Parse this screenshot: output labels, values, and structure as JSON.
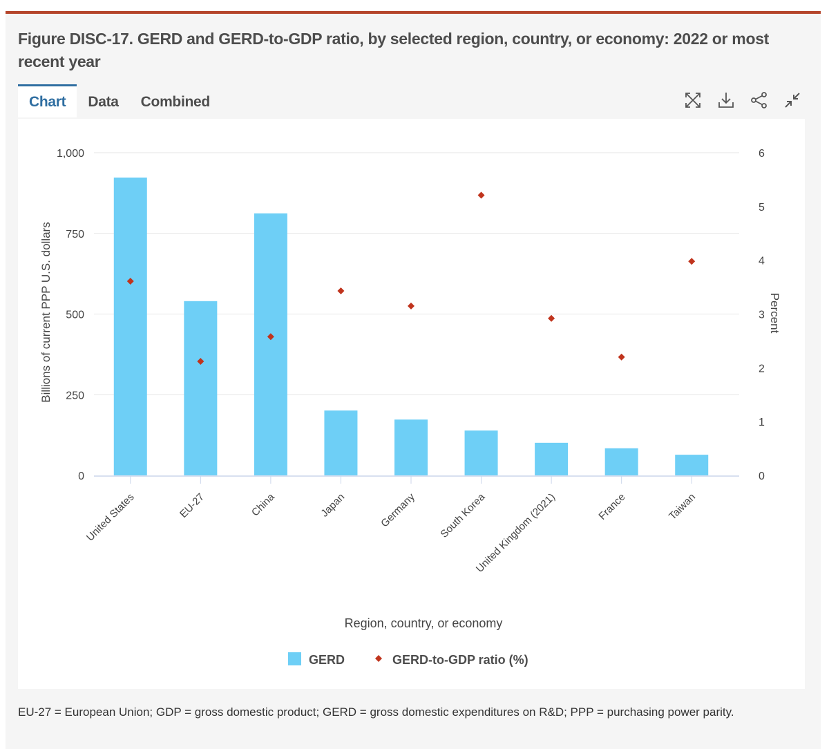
{
  "page": {
    "title": "Figure DISC-17. GERD and GERD-to-GDP ratio, by selected region, country, or economy: 2022 or most recent year",
    "accent_color": "#b5452b",
    "footnote": "EU-27 = European Union; GDP = gross domestic product; GERD = gross domestic expenditures on R&D; PPP = purchasing power parity."
  },
  "tabs": [
    {
      "label": "Chart",
      "active": true
    },
    {
      "label": "Data",
      "active": false
    },
    {
      "label": "Combined",
      "active": false
    }
  ],
  "toolbar": {
    "icons": [
      "expand-icon",
      "download-icon",
      "share-icon",
      "collapse-icon"
    ]
  },
  "chart_data": {
    "type": "bar",
    "title": "",
    "categories": [
      "United States",
      "EU-27",
      "China",
      "Japan",
      "Germany",
      "South Korea",
      "United Kingdom (2021)",
      "France",
      "Taiwan"
    ],
    "series": [
      {
        "name": "GERD",
        "type": "bar",
        "axis": "left",
        "color": "#6ecff6",
        "values": [
          923,
          540,
          812,
          201,
          173,
          139,
          101,
          84,
          64
        ]
      },
      {
        "name": "GERD-to-GDP ratio (%)",
        "type": "scatter",
        "axis": "right",
        "color": "#c0341d",
        "values": [
          3.61,
          2.12,
          2.58,
          3.43,
          3.15,
          5.21,
          2.92,
          2.2,
          3.98
        ]
      }
    ],
    "xlabel": "Region, country, or economy",
    "ylabel": "Billions of current PPP U.S. dollars",
    "y2label": "Percent",
    "ylim": [
      0,
      1000
    ],
    "y2lim": [
      0,
      6
    ],
    "yticks": [
      "0",
      "250",
      "500",
      "750",
      "1,000"
    ],
    "ytick_values": [
      0,
      250,
      500,
      750,
      1000
    ],
    "y2ticks": [
      "0",
      "1",
      "2",
      "3",
      "4",
      "5",
      "6"
    ],
    "y2tick_values": [
      0,
      1,
      2,
      3,
      4,
      5,
      6
    ],
    "grid": true,
    "legend": {
      "placement": "bottom-center",
      "entries": [
        "GERD",
        "GERD-to-GDP ratio (%)"
      ]
    }
  }
}
